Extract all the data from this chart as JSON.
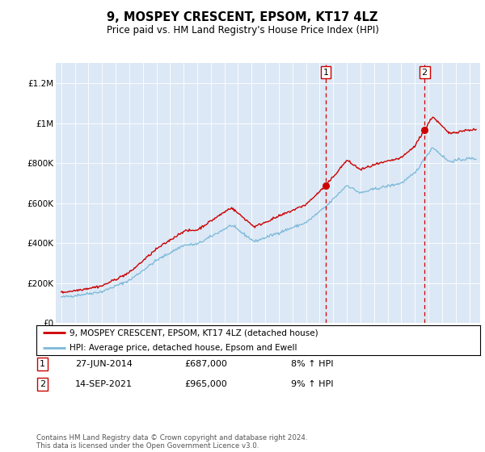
{
  "title": "9, MOSPEY CRESCENT, EPSOM, KT17 4LZ",
  "subtitle": "Price paid vs. HM Land Registry's House Price Index (HPI)",
  "footnote": "Contains HM Land Registry data © Crown copyright and database right 2024.\nThis data is licensed under the Open Government Licence v3.0.",
  "legend_line1": "9, MOSPEY CRESCENT, EPSOM, KT17 4LZ (detached house)",
  "legend_line2": "HPI: Average price, detached house, Epsom and Ewell",
  "purchase1_date": "27-JUN-2014",
  "purchase1_price": "£687,000",
  "purchase1_hpi": "8% ↑ HPI",
  "purchase2_date": "14-SEP-2021",
  "purchase2_price": "£965,000",
  "purchase2_hpi": "9% ↑ HPI",
  "hpi_color": "#7ab8d9",
  "price_color": "#cc0000",
  "background_color": "#dce8f5",
  "grid_color": "#ffffff",
  "ylim_max": 1300000,
  "xlim_min": 1994.6,
  "xlim_max": 2025.8,
  "yticks": [
    0,
    200000,
    400000,
    600000,
    800000,
    1000000,
    1200000
  ],
  "ytick_labels": [
    "£0",
    "£200K",
    "£400K",
    "£600K",
    "£800K",
    "£1M",
    "£1.2M"
  ],
  "purchase1_year": 2014.46,
  "purchase2_year": 2021.71
}
